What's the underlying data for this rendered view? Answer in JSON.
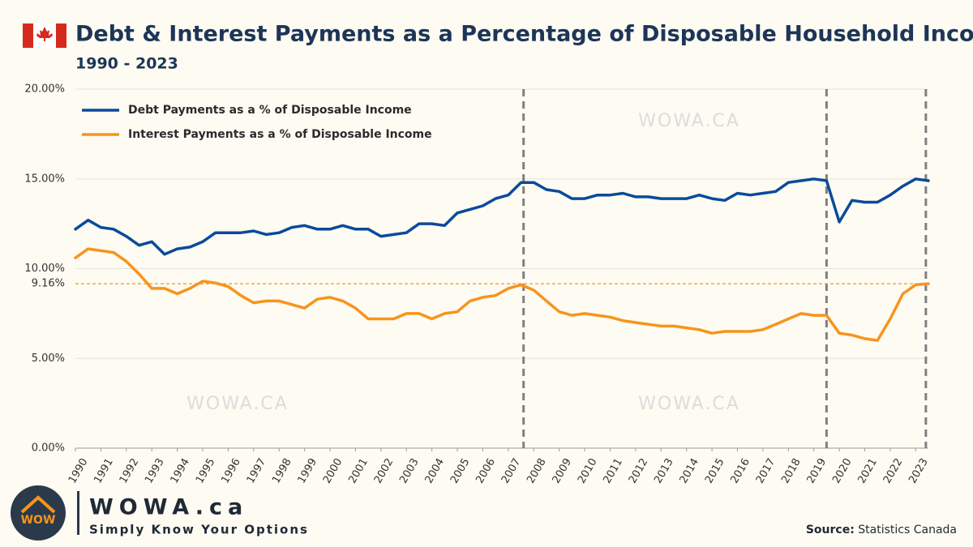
{
  "chart_data": {
    "type": "line",
    "title": "Debt & Interest Payments as a Percentage of Disposable Household Income",
    "subtitle": "1990 - 2023",
    "x": [
      1990,
      1990.5,
      1991,
      1991.5,
      1992,
      1992.5,
      1993,
      1993.5,
      1994,
      1994.5,
      1995,
      1995.5,
      1996,
      1996.5,
      1997,
      1997.5,
      1998,
      1998.5,
      1999,
      1999.5,
      2000,
      2000.5,
      2001,
      2001.5,
      2002,
      2002.5,
      2003,
      2003.5,
      2004,
      2004.5,
      2005,
      2005.5,
      2006,
      2006.5,
      2007,
      2007.5,
      2008,
      2008.5,
      2009,
      2009.5,
      2010,
      2010.5,
      2011,
      2011.5,
      2012,
      2012.5,
      2013,
      2013.5,
      2014,
      2014.5,
      2015,
      2015.5,
      2016,
      2016.5,
      2017,
      2017.5,
      2018,
      2018.5,
      2019,
      2019.5,
      2020,
      2020.5,
      2021,
      2021.5,
      2022,
      2022.5,
      2023,
      2023.5
    ],
    "xlim": [
      1990,
      2023.5
    ],
    "xticks": [
      1990,
      1991,
      1992,
      1993,
      1994,
      1995,
      1996,
      1997,
      1998,
      1999,
      2000,
      2001,
      2002,
      2003,
      2004,
      2005,
      2006,
      2007,
      2008,
      2009,
      2010,
      2011,
      2012,
      2013,
      2014,
      2015,
      2016,
      2017,
      2018,
      2019,
      2020,
      2021,
      2022,
      2023
    ],
    "ylim": [
      0,
      20
    ],
    "yticks": [
      {
        "value": 0,
        "label": "0.00%"
      },
      {
        "value": 5,
        "label": "5.00%"
      },
      {
        "value": 10,
        "label": "10.00%"
      },
      {
        "value": 15,
        "label": "15.00%"
      },
      {
        "value": 20,
        "label": "20.00%"
      }
    ],
    "grid": true,
    "legend": "upper left",
    "series": [
      {
        "name": "Debt Payments as a % of Disposable Income",
        "color": "#0b4a9c",
        "values": [
          12.2,
          12.7,
          12.3,
          12.2,
          11.8,
          11.3,
          11.5,
          10.8,
          11.1,
          11.2,
          11.5,
          12.0,
          12.0,
          12.0,
          12.1,
          11.9,
          12.0,
          12.3,
          12.4,
          12.2,
          12.2,
          12.4,
          12.2,
          12.2,
          11.8,
          11.9,
          12.0,
          12.5,
          12.5,
          12.4,
          13.1,
          13.3,
          13.5,
          13.9,
          14.1,
          14.8,
          14.8,
          14.4,
          14.3,
          13.9,
          13.9,
          14.1,
          14.1,
          14.2,
          14.0,
          14.0,
          13.9,
          13.9,
          13.9,
          14.1,
          13.9,
          13.8,
          14.2,
          14.1,
          14.2,
          14.3,
          14.8,
          14.9,
          15.0,
          14.9,
          12.6,
          13.8,
          13.7,
          13.7,
          14.1,
          14.6,
          15.0,
          14.9
        ]
      },
      {
        "name": "Interest Payments as a % of Disposable Income",
        "color": "#f7941d",
        "values": [
          10.6,
          11.1,
          11.0,
          10.9,
          10.4,
          9.7,
          8.9,
          8.9,
          8.6,
          8.9,
          9.3,
          9.2,
          9.0,
          8.5,
          8.1,
          8.2,
          8.2,
          8.0,
          7.8,
          8.3,
          8.4,
          8.2,
          7.8,
          7.2,
          7.2,
          7.2,
          7.5,
          7.5,
          7.2,
          7.5,
          7.6,
          8.2,
          8.4,
          8.5,
          8.9,
          9.1,
          8.8,
          8.2,
          7.6,
          7.4,
          7.5,
          7.4,
          7.3,
          7.1,
          7.0,
          6.9,
          6.8,
          6.8,
          6.7,
          6.6,
          6.4,
          6.5,
          6.5,
          6.5,
          6.6,
          6.9,
          7.2,
          7.5,
          7.4,
          7.4,
          6.4,
          6.3,
          6.1,
          6.0,
          7.2,
          8.6,
          9.1,
          9.16
        ]
      }
    ],
    "reference_line": {
      "value": 9.16,
      "label": "9.16%",
      "color": "#f7941d"
    },
    "vlines": [
      2007.6,
      2019.5,
      2023.4
    ]
  },
  "watermark": "WOWA.CA",
  "branding": {
    "icon": "WOW",
    "name": "WOWA.ca",
    "tagline": "Simply Know Your Options"
  },
  "source": {
    "label": "Source:",
    "text": "Statistics Canada"
  }
}
